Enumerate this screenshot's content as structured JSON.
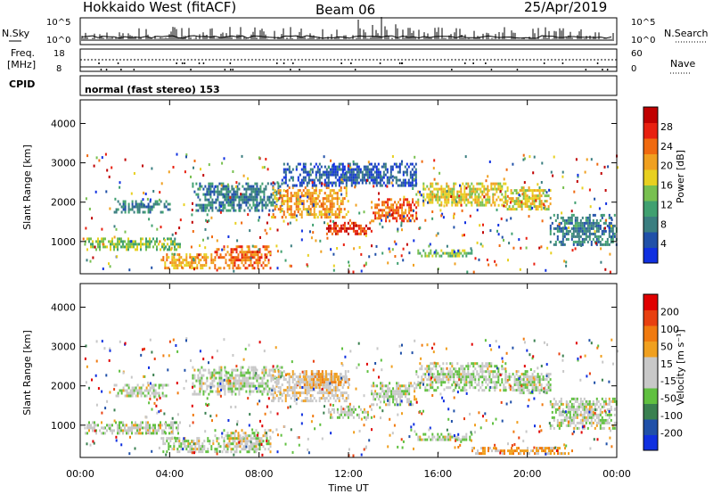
{
  "header": {
    "title": "Hokkaido West (fitACF)",
    "beam": "Beam 06",
    "date": "25/Apr/2019"
  },
  "top_panels": {
    "nsky_label": "N.Sky",
    "nsearch_label": "N.Search",
    "nsky_scale_top": "10^5",
    "nsky_scale_bottom": "10^0",
    "freq_label_line1": "Freq.",
    "freq_label_line2": "[MHz]",
    "freq_ticks": [
      "18",
      "8"
    ],
    "nave_label": "Nave",
    "nave_ticks": [
      "60",
      "0"
    ],
    "cpid_label": "CPID",
    "mode_text": "normal (fast stereo) 153"
  },
  "x_axis": {
    "label": "Time UT",
    "ticks": [
      "00:00",
      "04:00",
      "08:00",
      "12:00",
      "16:00",
      "20:00",
      "00:00"
    ]
  },
  "colors": {
    "power": [
      "#1030e0",
      "#2050a8",
      "#3a7e80",
      "#40a070",
      "#78c050",
      "#e8d020",
      "#f0a020",
      "#f06a10",
      "#e82010",
      "#c00000"
    ],
    "velocity": [
      "#1030e0",
      "#2050a8",
      "#3a8050",
      "#60c040",
      "#c8c8c8",
      "#c8c8c8",
      "#f0a020",
      "#f07a10",
      "#e84010",
      "#e00000"
    ]
  },
  "chart_data": [
    {
      "type": "heatmap",
      "quantity": "Power",
      "ylabel": "Slant Range [km]",
      "xlabel": "Time UT",
      "xlim": [
        0,
        24
      ],
      "ylim": [
        180,
        4600
      ],
      "yticks": [
        "1000",
        "2000",
        "3000",
        "4000"
      ],
      "colorbar": {
        "label": "Power [dB]",
        "ticks": [
          "4",
          "8",
          "12",
          "16",
          "20",
          "24",
          "28"
        ]
      },
      "bands": [
        {
          "t0": 0.2,
          "t1": 4.5,
          "r0": 780,
          "r1": 1100,
          "level": 4
        },
        {
          "t0": 1.5,
          "t1": 4.0,
          "r0": 1750,
          "r1": 2050,
          "level": 2
        },
        {
          "t0": 3.6,
          "t1": 6.0,
          "r0": 300,
          "r1": 700,
          "level": 6
        },
        {
          "t0": 6.0,
          "t1": 8.5,
          "r0": 350,
          "r1": 900,
          "level": 7
        },
        {
          "t0": 5.0,
          "t1": 9.0,
          "r0": 1800,
          "r1": 2500,
          "level": 2
        },
        {
          "t0": 8.6,
          "t1": 12.0,
          "r0": 1600,
          "r1": 2400,
          "level": 6
        },
        {
          "t0": 11.0,
          "t1": 13.0,
          "r0": 1200,
          "r1": 1500,
          "level": 8
        },
        {
          "t0": 13.0,
          "t1": 15.0,
          "r0": 1500,
          "r1": 2100,
          "level": 7
        },
        {
          "t0": 15.0,
          "t1": 19.0,
          "r0": 1900,
          "r1": 2500,
          "level": 5
        },
        {
          "t0": 19.0,
          "t1": 21.0,
          "r0": 1800,
          "r1": 2400,
          "level": 5
        },
        {
          "t0": 21.0,
          "t1": 24.0,
          "r0": 900,
          "r1": 1700,
          "level": 2
        },
        {
          "t0": 15.0,
          "t1": 17.5,
          "r0": 600,
          "r1": 800,
          "level": 4
        },
        {
          "t0": 9.0,
          "t1": 15.0,
          "r0": 2400,
          "r1": 3000,
          "level": 1
        }
      ]
    },
    {
      "type": "heatmap",
      "quantity": "Velocity",
      "ylabel": "Slant Range [km]",
      "xlabel": "Time UT",
      "xlim": [
        0,
        24
      ],
      "ylim": [
        180,
        4600
      ],
      "yticks": [
        "1000",
        "2000",
        "3000",
        "4000"
      ],
      "colorbar": {
        "label": "Velocity [m s⁻¹]",
        "ticks": [
          "200",
          "100",
          "50",
          "15",
          "-15",
          "-50",
          "-100",
          "-200"
        ]
      },
      "bands": [
        {
          "t0": 0.2,
          "t1": 4.5,
          "r0": 780,
          "r1": 1100,
          "level": 4
        },
        {
          "t0": 1.5,
          "t1": 4.0,
          "r0": 1750,
          "r1": 2050,
          "level": 4
        },
        {
          "t0": 3.6,
          "t1": 6.0,
          "r0": 300,
          "r1": 700,
          "level": 4
        },
        {
          "t0": 6.0,
          "t1": 8.5,
          "r0": 350,
          "r1": 900,
          "level": 4
        },
        {
          "t0": 5.0,
          "t1": 9.0,
          "r0": 1800,
          "r1": 2500,
          "level": 4
        },
        {
          "t0": 8.6,
          "t1": 12.0,
          "r0": 1600,
          "r1": 2400,
          "level": 5
        },
        {
          "t0": 10.0,
          "t1": 12.0,
          "r0": 2050,
          "r1": 2400,
          "level": 6
        },
        {
          "t0": 11.0,
          "t1": 13.0,
          "r0": 1200,
          "r1": 1500,
          "level": 4
        },
        {
          "t0": 13.0,
          "t1": 15.0,
          "r0": 1500,
          "r1": 2100,
          "level": 4
        },
        {
          "t0": 15.0,
          "t1": 19.0,
          "r0": 1900,
          "r1": 2600,
          "level": 4
        },
        {
          "t0": 19.0,
          "t1": 21.0,
          "r0": 1800,
          "r1": 2400,
          "level": 4
        },
        {
          "t0": 21.0,
          "t1": 24.0,
          "r0": 900,
          "r1": 1700,
          "level": 4
        },
        {
          "t0": 15.0,
          "t1": 17.5,
          "r0": 600,
          "r1": 800,
          "level": 4
        },
        {
          "t0": 17.5,
          "t1": 22.0,
          "r0": 250,
          "r1": 450,
          "level": 6
        }
      ]
    }
  ]
}
